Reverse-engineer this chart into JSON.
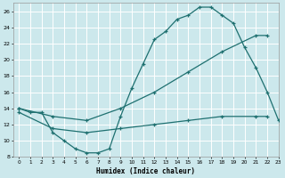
{
  "xlabel": "Humidex (Indice chaleur)",
  "bg_color": "#cce8ec",
  "grid_color": "#ffffff",
  "line_color": "#1e7070",
  "line1_x": [
    0,
    1,
    2,
    3,
    4,
    5,
    6,
    7,
    8,
    9,
    10,
    11,
    12,
    13,
    14,
    15,
    16,
    17,
    18,
    19,
    20,
    21,
    22,
    23
  ],
  "line1_y": [
    14,
    13.5,
    13.5,
    11,
    10,
    9,
    8.5,
    8.5,
    9,
    13,
    16.5,
    19.5,
    22.5,
    23.5,
    25,
    25.5,
    26.5,
    26.5,
    25.5,
    24.5,
    21.5,
    19,
    16,
    12.5
  ],
  "line2_x": [
    0,
    3,
    6,
    9,
    12,
    15,
    18,
    21,
    22
  ],
  "line2_y": [
    14,
    13,
    12.5,
    14,
    16,
    18.5,
    21,
    23,
    23
  ],
  "line3_x": [
    0,
    3,
    6,
    9,
    12,
    15,
    18,
    21,
    22
  ],
  "line3_y": [
    13.5,
    11.5,
    11,
    11.5,
    12,
    12.5,
    13,
    13,
    13
  ],
  "xlim": [
    -0.5,
    23
  ],
  "ylim": [
    8,
    27
  ],
  "xticks": [
    0,
    1,
    2,
    3,
    4,
    5,
    6,
    7,
    8,
    9,
    10,
    11,
    12,
    13,
    14,
    15,
    16,
    17,
    18,
    19,
    20,
    21,
    22,
    23
  ],
  "yticks": [
    8,
    10,
    12,
    14,
    16,
    18,
    20,
    22,
    24,
    26
  ]
}
